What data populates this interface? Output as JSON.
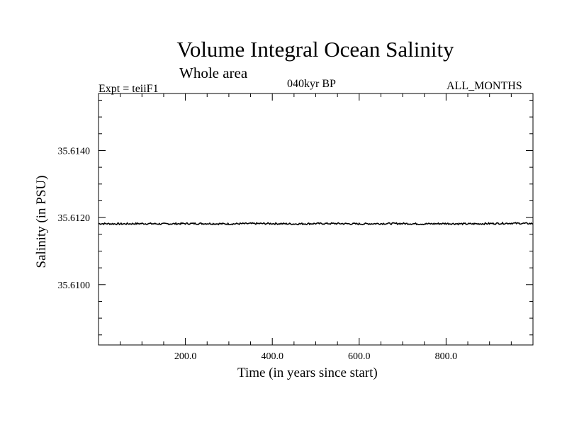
{
  "chart_data": {
    "type": "line",
    "title": "Volume Integral Ocean Salinity",
    "subtitle": "Whole area",
    "annotations": {
      "experiment": "Expt = teiiF1",
      "period": "040kyr BP",
      "months": "ALL_MONTHS"
    },
    "xlabel": "Time (in years since start)",
    "ylabel": "Salinity (in PSU)",
    "xlim": [
      0,
      1000
    ],
    "ylim": [
      35.6082,
      35.6157
    ],
    "x_ticks": [
      200,
      400,
      600,
      800
    ],
    "x_tick_labels": [
      "200.0",
      "400.0",
      "600.0",
      "800.0"
    ],
    "y_ticks": [
      35.61,
      35.612,
      35.614
    ],
    "y_tick_labels": [
      "35.6100",
      "35.6120",
      "35.6140"
    ],
    "x_minor_step": 50,
    "y_minor_step": 0.0005,
    "series": [
      {
        "color": "#000000",
        "x": [
          0,
          50,
          100,
          150,
          200,
          250,
          300,
          350,
          400,
          450,
          500,
          550,
          600,
          650,
          700,
          750,
          800,
          850,
          900,
          950,
          1000
        ],
        "values": [
          35.61182,
          35.61181,
          35.61182,
          35.61181,
          35.61182,
          35.61182,
          35.61181,
          35.61182,
          35.61182,
          35.61181,
          35.61182,
          35.61182,
          35.61181,
          35.61182,
          35.61182,
          35.61181,
          35.61182,
          35.61181,
          35.61182,
          35.61183,
          35.61182
        ]
      }
    ],
    "grid": false,
    "legend": "none"
  }
}
